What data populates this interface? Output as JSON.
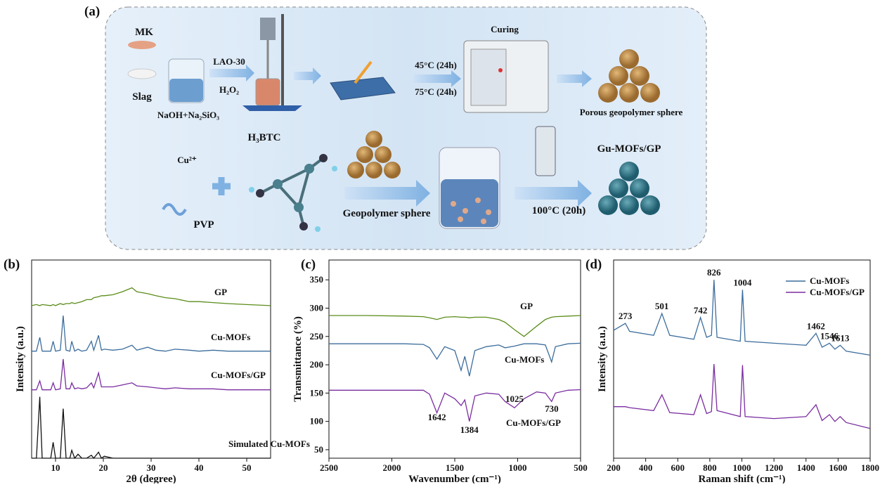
{
  "diagram": {
    "panel_label": "(a)",
    "mk": "MK",
    "slag": "Slag",
    "solution": "NaOH+Na₂SiO₃",
    "lao": "LAO-30",
    "h2o2": "H₂O₂",
    "temp1": "45°C (24h)",
    "temp2": "75°C (24h)",
    "curing": "Curing",
    "porous": "Porous geopolymer sphere",
    "h3btc": "H₃BTC",
    "cu": "Cu²⁺",
    "pvp": "PVP",
    "geo_sphere": "Geopolymer  sphere",
    "temp3": "100°C (20h)",
    "product": "Gu-MOFs/GP"
  },
  "chart_data": [
    {
      "type": "line",
      "panel_label": "(b)",
      "x_label": "2θ (degree)",
      "y_label": "Intensity (a.u.)",
      "xlim": [
        5,
        55
      ],
      "xticks": [
        10,
        20,
        30,
        40,
        50
      ],
      "ylim": [
        0,
        100
      ],
      "x": [
        5,
        6,
        6.7,
        7.2,
        9,
        9.5,
        10,
        11,
        11.6,
        12.2,
        13,
        13.4,
        14,
        14.7,
        15.5,
        16.5,
        17.5,
        18,
        19,
        19.6,
        20.2,
        22,
        24,
        26,
        27,
        29.3,
        31,
        33,
        35,
        38,
        40,
        43,
        46,
        50,
        55
      ],
      "series": [
        {
          "name": "GP",
          "color": "#5b8c1a",
          "values": [
            77,
            77.5,
            77,
            77.5,
            77,
            77.5,
            77,
            78,
            77.5,
            78,
            78,
            78.5,
            78,
            78.5,
            79,
            80,
            80,
            81,
            81.5,
            82,
            82,
            82.5,
            84,
            86,
            84,
            83,
            82,
            81,
            80.5,
            79,
            79,
            78.5,
            78,
            77.5,
            77
          ]
        },
        {
          "name": "Cu-MOFs",
          "color": "#3c6d9c",
          "values": [
            54,
            54,
            61,
            54,
            54,
            59,
            54,
            54.5,
            72,
            54.5,
            54,
            59,
            54,
            55,
            54,
            54.5,
            59,
            54.5,
            62,
            54.5,
            55,
            54.5,
            55,
            57,
            54.5,
            56,
            54.5,
            54,
            55,
            54.5,
            54,
            54.5,
            54,
            54,
            54
          ]
        },
        {
          "name": "Cu-MOFs/GP",
          "color": "#7a2da0",
          "values": [
            34.5,
            34.5,
            39,
            34.5,
            34.5,
            38,
            34.5,
            35,
            50,
            35,
            35,
            38,
            35,
            35.5,
            35,
            35.5,
            38,
            35.5,
            43,
            36,
            36,
            36,
            37,
            38,
            36.5,
            36,
            35.5,
            35,
            35.5,
            35,
            35,
            35,
            34.5,
            34.5,
            34.5
          ]
        },
        {
          "name": "Simulated Cu-MOFs",
          "color": "#111111",
          "values": [
            0,
            0,
            31,
            0,
            0,
            8,
            0,
            0,
            25,
            0,
            0,
            4,
            0,
            2,
            0,
            0,
            1.5,
            0,
            3,
            0,
            1,
            0,
            0,
            0,
            0,
            0,
            0,
            0,
            0,
            0,
            0,
            0,
            0,
            0,
            0
          ]
        }
      ]
    },
    {
      "type": "line",
      "panel_label": "(c)",
      "x_label": "Wavenumber (cm⁻¹)",
      "y_label": "Transmittance (%)",
      "xlim": [
        2500,
        500
      ],
      "xticks": [
        2500,
        2000,
        1500,
        1000,
        500
      ],
      "ylim": [
        35,
        385
      ],
      "yticks": [
        50,
        100,
        150,
        200,
        250,
        300,
        350
      ],
      "x": [
        2500,
        2200,
        1900,
        1750,
        1700,
        1642,
        1580,
        1500,
        1450,
        1420,
        1384,
        1340,
        1250,
        1150,
        1100,
        1025,
        950,
        850,
        780,
        730,
        700,
        600,
        500
      ],
      "series": [
        {
          "name": "GP",
          "color": "#5b8c1a",
          "values": [
            287,
            287,
            286,
            285,
            283,
            280,
            284,
            285,
            284,
            284,
            283,
            284,
            284,
            280,
            275,
            262,
            250,
            268,
            280,
            284,
            285,
            286,
            287
          ]
        },
        {
          "name": "Cu-MOFs",
          "color": "#3c6d9c",
          "values": [
            237,
            237,
            237,
            236,
            230,
            210,
            232,
            225,
            190,
            215,
            180,
            225,
            232,
            235,
            230,
            233,
            237,
            237,
            235,
            205,
            232,
            237,
            238
          ]
        },
        {
          "name": "Cu-MOFs/GP",
          "color": "#7a2da0",
          "values": [
            155,
            155,
            155,
            155,
            148,
            115,
            150,
            140,
            128,
            138,
            100,
            145,
            150,
            148,
            135,
            124,
            140,
            152,
            150,
            135,
            150,
            155,
            156
          ]
        }
      ],
      "peak_labels": [
        1642,
        1384,
        1025,
        730
      ]
    },
    {
      "type": "line",
      "panel_label": "(d)",
      "x_label": "Raman shift (cm⁻¹)",
      "y_label": "Intensity (a.u.)",
      "xlim": [
        200,
        1800
      ],
      "xticks": [
        200,
        400,
        600,
        800,
        1000,
        1200,
        1400,
        1600,
        1800
      ],
      "ylim": [
        0,
        100
      ],
      "legend": "upper right",
      "x": [
        200,
        273,
        300,
        450,
        501,
        550,
        700,
        742,
        780,
        810,
        826,
        845,
        990,
        1004,
        1020,
        1200,
        1400,
        1462,
        1500,
        1546,
        1580,
        1613,
        1650,
        1800
      ],
      "series": [
        {
          "name": "Cu-MOFs",
          "color": "#3c6d9c",
          "values": [
            64.5,
            68,
            64,
            62,
            73,
            62,
            60,
            71,
            61,
            62,
            90,
            61,
            59,
            85,
            59,
            58,
            57,
            63,
            56,
            58,
            55,
            57,
            54,
            52
          ]
        },
        {
          "name": "Cu-MOFs/GP",
          "color": "#7a2da0",
          "values": [
            26,
            26,
            25.5,
            24,
            32,
            23,
            22,
            32,
            22.5,
            23.5,
            47.5,
            24,
            21,
            47,
            21,
            20,
            21,
            27,
            19,
            22,
            18.5,
            21,
            18,
            15
          ]
        }
      ],
      "peak_labels": [
        273,
        501,
        742,
        826,
        1004,
        1462,
        1546,
        1613
      ]
    }
  ]
}
